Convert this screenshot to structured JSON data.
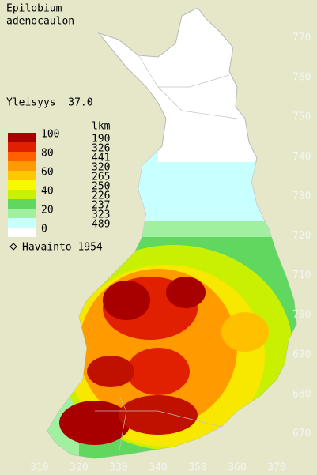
{
  "title": [
    "Epilobium",
    "adenocaulon"
  ],
  "frequency": "Yleisyys  37.0",
  "legend": {
    "scale_labels": [
      "100",
      "80",
      "60",
      "40",
      "20",
      "0"
    ],
    "count_header": "lkm",
    "counts": [
      "190",
      "326",
      "441",
      "320",
      "265",
      "250",
      "226",
      "237",
      "323",
      "489"
    ],
    "observation": "Havainto 1954"
  },
  "axes": {
    "x_labels": [
      "310",
      "320",
      "330",
      "340",
      "350",
      "360",
      "370"
    ],
    "y_labels": [
      "770",
      "760",
      "750",
      "740",
      "730",
      "720",
      "710",
      "700",
      "690",
      "680",
      "670"
    ]
  }
}
